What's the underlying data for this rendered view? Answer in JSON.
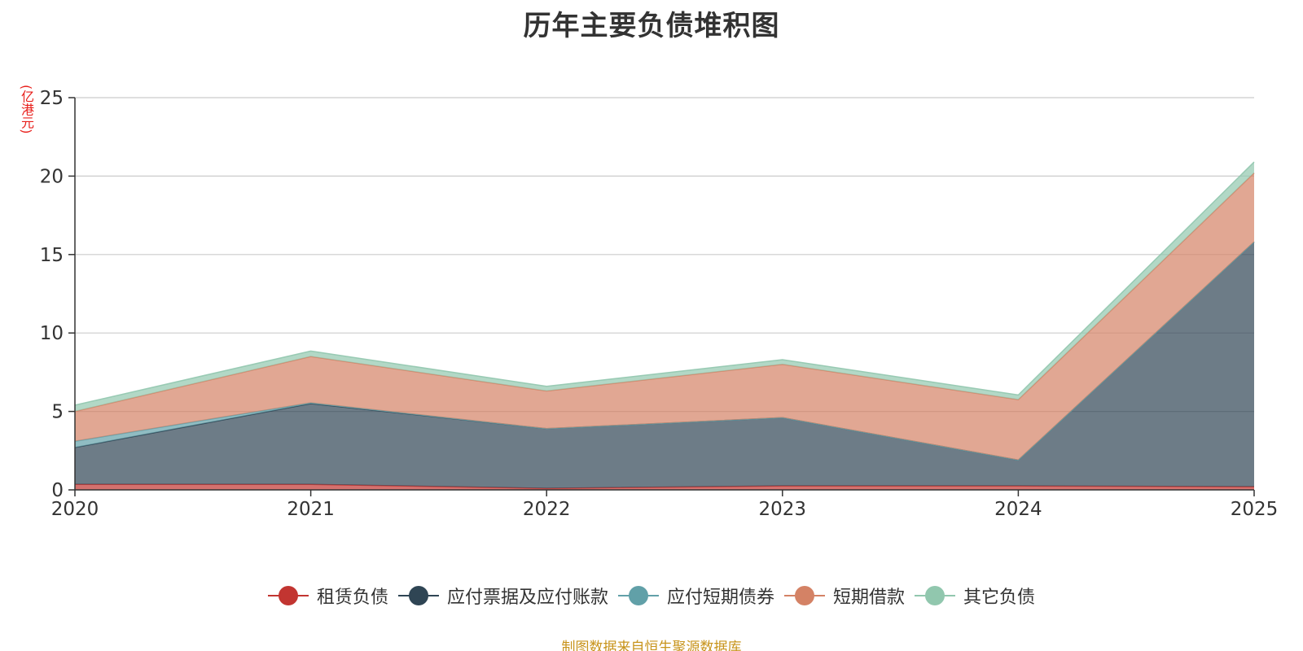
{
  "chart_data": {
    "type": "area",
    "stacked": true,
    "title": "历年主要负债堆积图",
    "ylabel": "(亿港元)",
    "xlabel": "",
    "x": [
      "2020",
      "2021",
      "2022",
      "2023",
      "2024",
      "2025"
    ],
    "ylim": [
      0,
      25
    ],
    "yticks": [
      0,
      5,
      10,
      15,
      20,
      25
    ],
    "grid": true,
    "legend_position": "bottom-center",
    "series": [
      {
        "name": "租赁负债",
        "color": "#c23531",
        "values": [
          0.35,
          0.35,
          0.1,
          0.25,
          0.25,
          0.2
        ]
      },
      {
        "name": "应付票据及应付账款",
        "color": "#2f4554",
        "values": [
          2.35,
          5.15,
          3.8,
          4.35,
          1.65,
          15.6
        ]
      },
      {
        "name": "应付短期债券",
        "color": "#61a0a8",
        "values": [
          0.4,
          0.05,
          0.0,
          0.0,
          0.0,
          0.0
        ]
      },
      {
        "name": "短期借款",
        "color": "#d48265",
        "values": [
          1.9,
          2.95,
          2.4,
          3.4,
          3.85,
          4.4
        ]
      },
      {
        "name": "其它负债",
        "color": "#91c7ae",
        "values": [
          0.4,
          0.35,
          0.3,
          0.3,
          0.3,
          0.7
        ]
      }
    ]
  },
  "source_note": "制图数据来自恒生聚源数据库"
}
